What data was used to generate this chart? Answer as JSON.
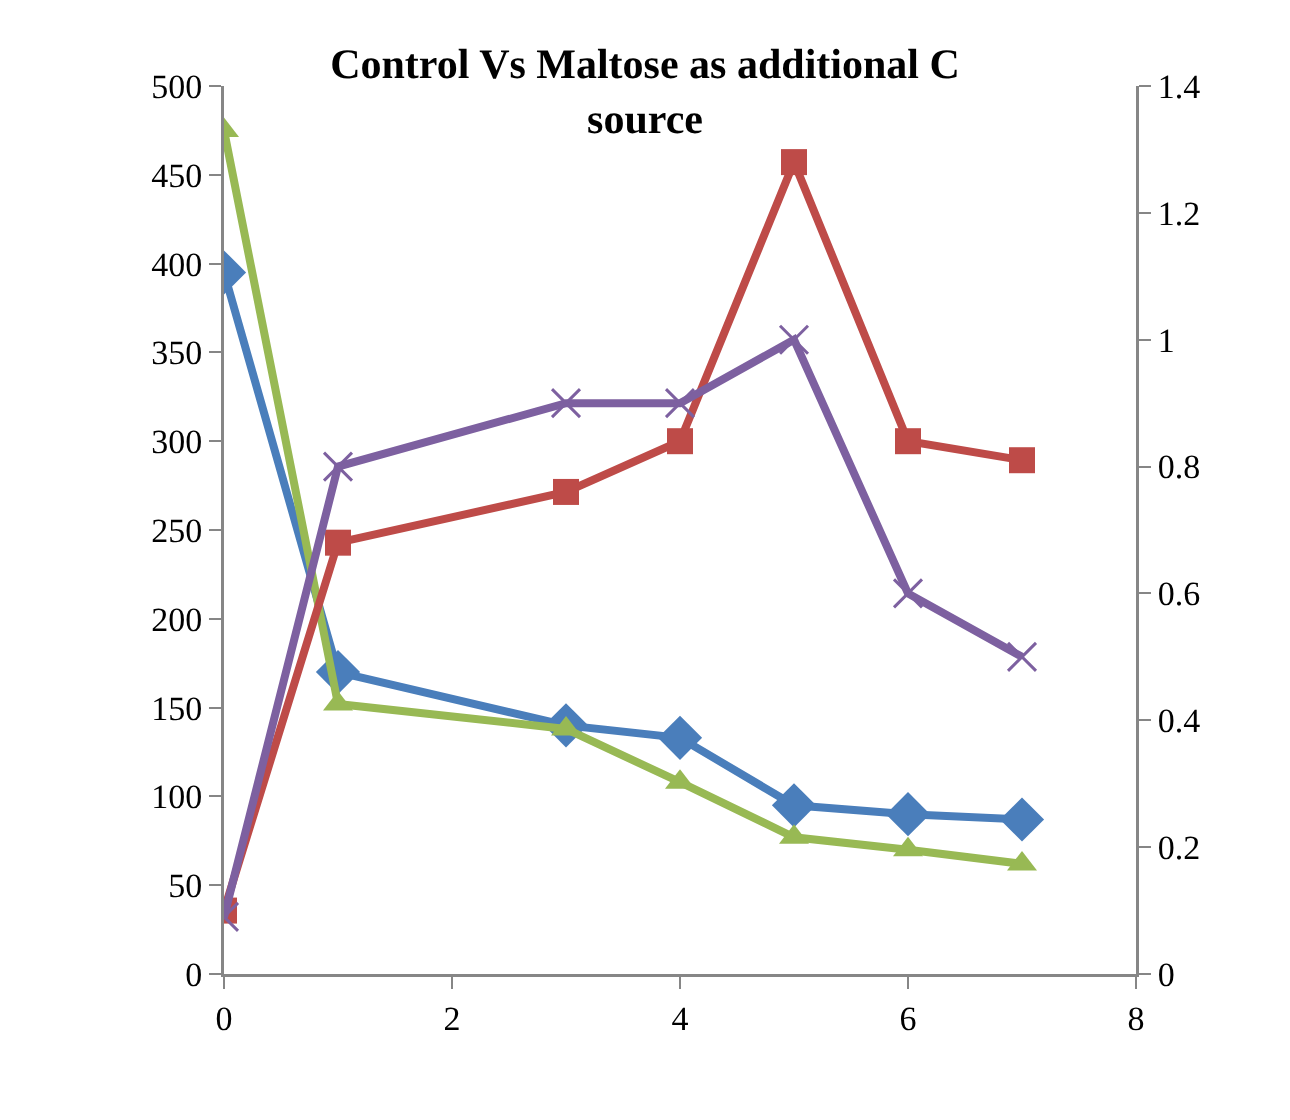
{
  "chart_data": {
    "type": "line",
    "title": "Control Vs Maltose as additional C source",
    "x": [
      0,
      1,
      3,
      4,
      5,
      6,
      7
    ],
    "series": [
      {
        "color": "#4a7ebb",
        "marker": "diamond",
        "values": [
          395,
          170,
          140,
          133,
          95,
          90,
          87
        ]
      },
      {
        "color": "#be4b48",
        "marker": "square",
        "axis": "y2",
        "values": [
          0.1,
          0.68,
          0.76,
          0.84,
          1.28,
          0.84,
          0.81
        ]
      },
      {
        "color": "#98b954",
        "marker": "triangle",
        "values": [
          475,
          152,
          138,
          108,
          77,
          70,
          62
        ]
      },
      {
        "color": "#7d60a0",
        "marker": "cross",
        "axis": "y2",
        "values": [
          0.09,
          0.8,
          0.9,
          0.9,
          1.0,
          0.6,
          0.5
        ]
      }
    ],
    "xlim": [
      0,
      8
    ],
    "xticks": [
      0,
      2,
      4,
      6,
      8
    ],
    "ylim": [
      0,
      500
    ],
    "yticks": [
      0,
      50,
      100,
      150,
      200,
      250,
      300,
      350,
      400,
      450,
      500
    ],
    "y2lim": [
      0,
      1.4
    ],
    "y2ticks": [
      0,
      0.2,
      0.4,
      0.6,
      0.8,
      1,
      1.2,
      1.4
    ],
    "grid": false
  }
}
